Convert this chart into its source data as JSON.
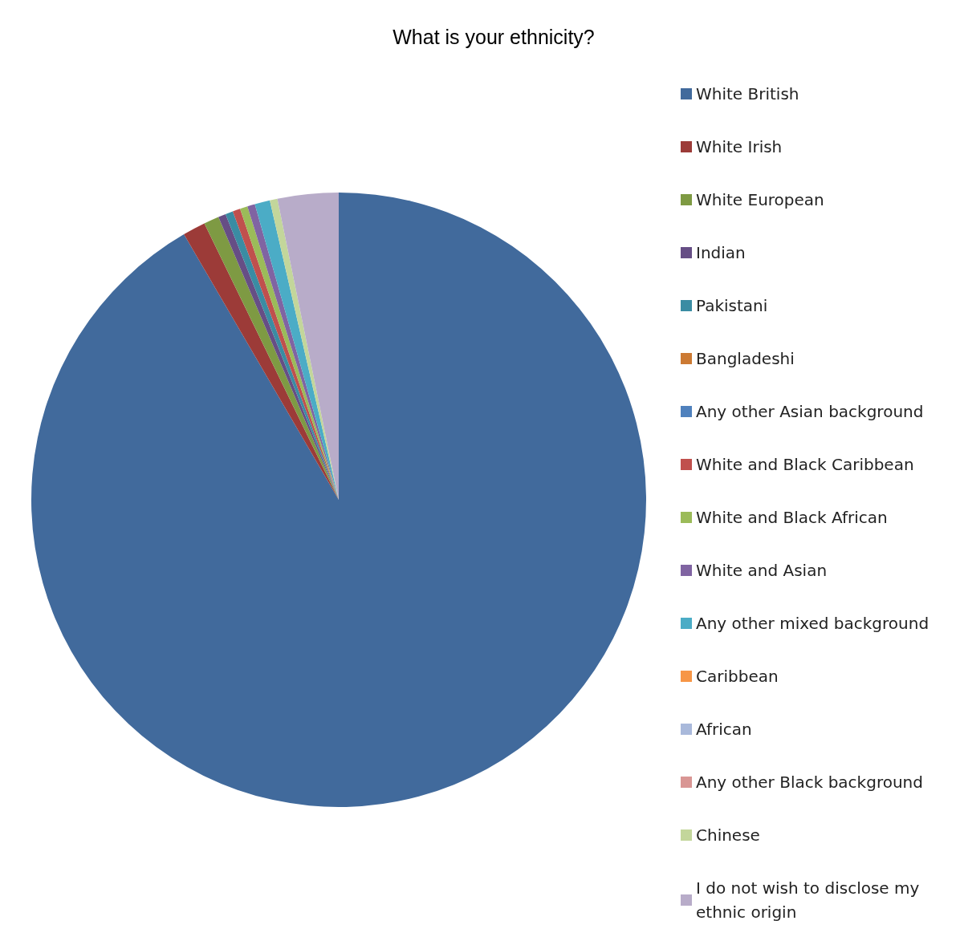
{
  "chart_data": {
    "type": "pie",
    "title": "What is your ethnicity?",
    "categories": [
      "White British",
      "White Irish",
      "White European",
      "Indian",
      "Pakistani",
      "Bangladeshi",
      "Any other Asian background",
      "White and Black Caribbean",
      "White and Black African",
      "White and Asian",
      "Any other mixed background",
      "Caribbean",
      "African",
      "Any other Black background",
      "Chinese",
      "I do not wish to disclose my ethnic origin"
    ],
    "values": [
      91.6,
      1.2,
      0.8,
      0.4,
      0.4,
      0,
      0,
      0.4,
      0.4,
      0.4,
      0.8,
      0,
      0,
      0,
      0.4,
      3.2
    ],
    "colors": [
      "#416a9c",
      "#9c3b38",
      "#7e9a43",
      "#664e85",
      "#3a8ca3",
      "#cc7a33",
      "#4f81bd",
      "#c0504d",
      "#9bbb59",
      "#8064a2",
      "#4bacc6",
      "#f79646",
      "#a9b9db",
      "#d99694",
      "#c3d69b",
      "#b8acc9"
    ],
    "legend": "right"
  }
}
